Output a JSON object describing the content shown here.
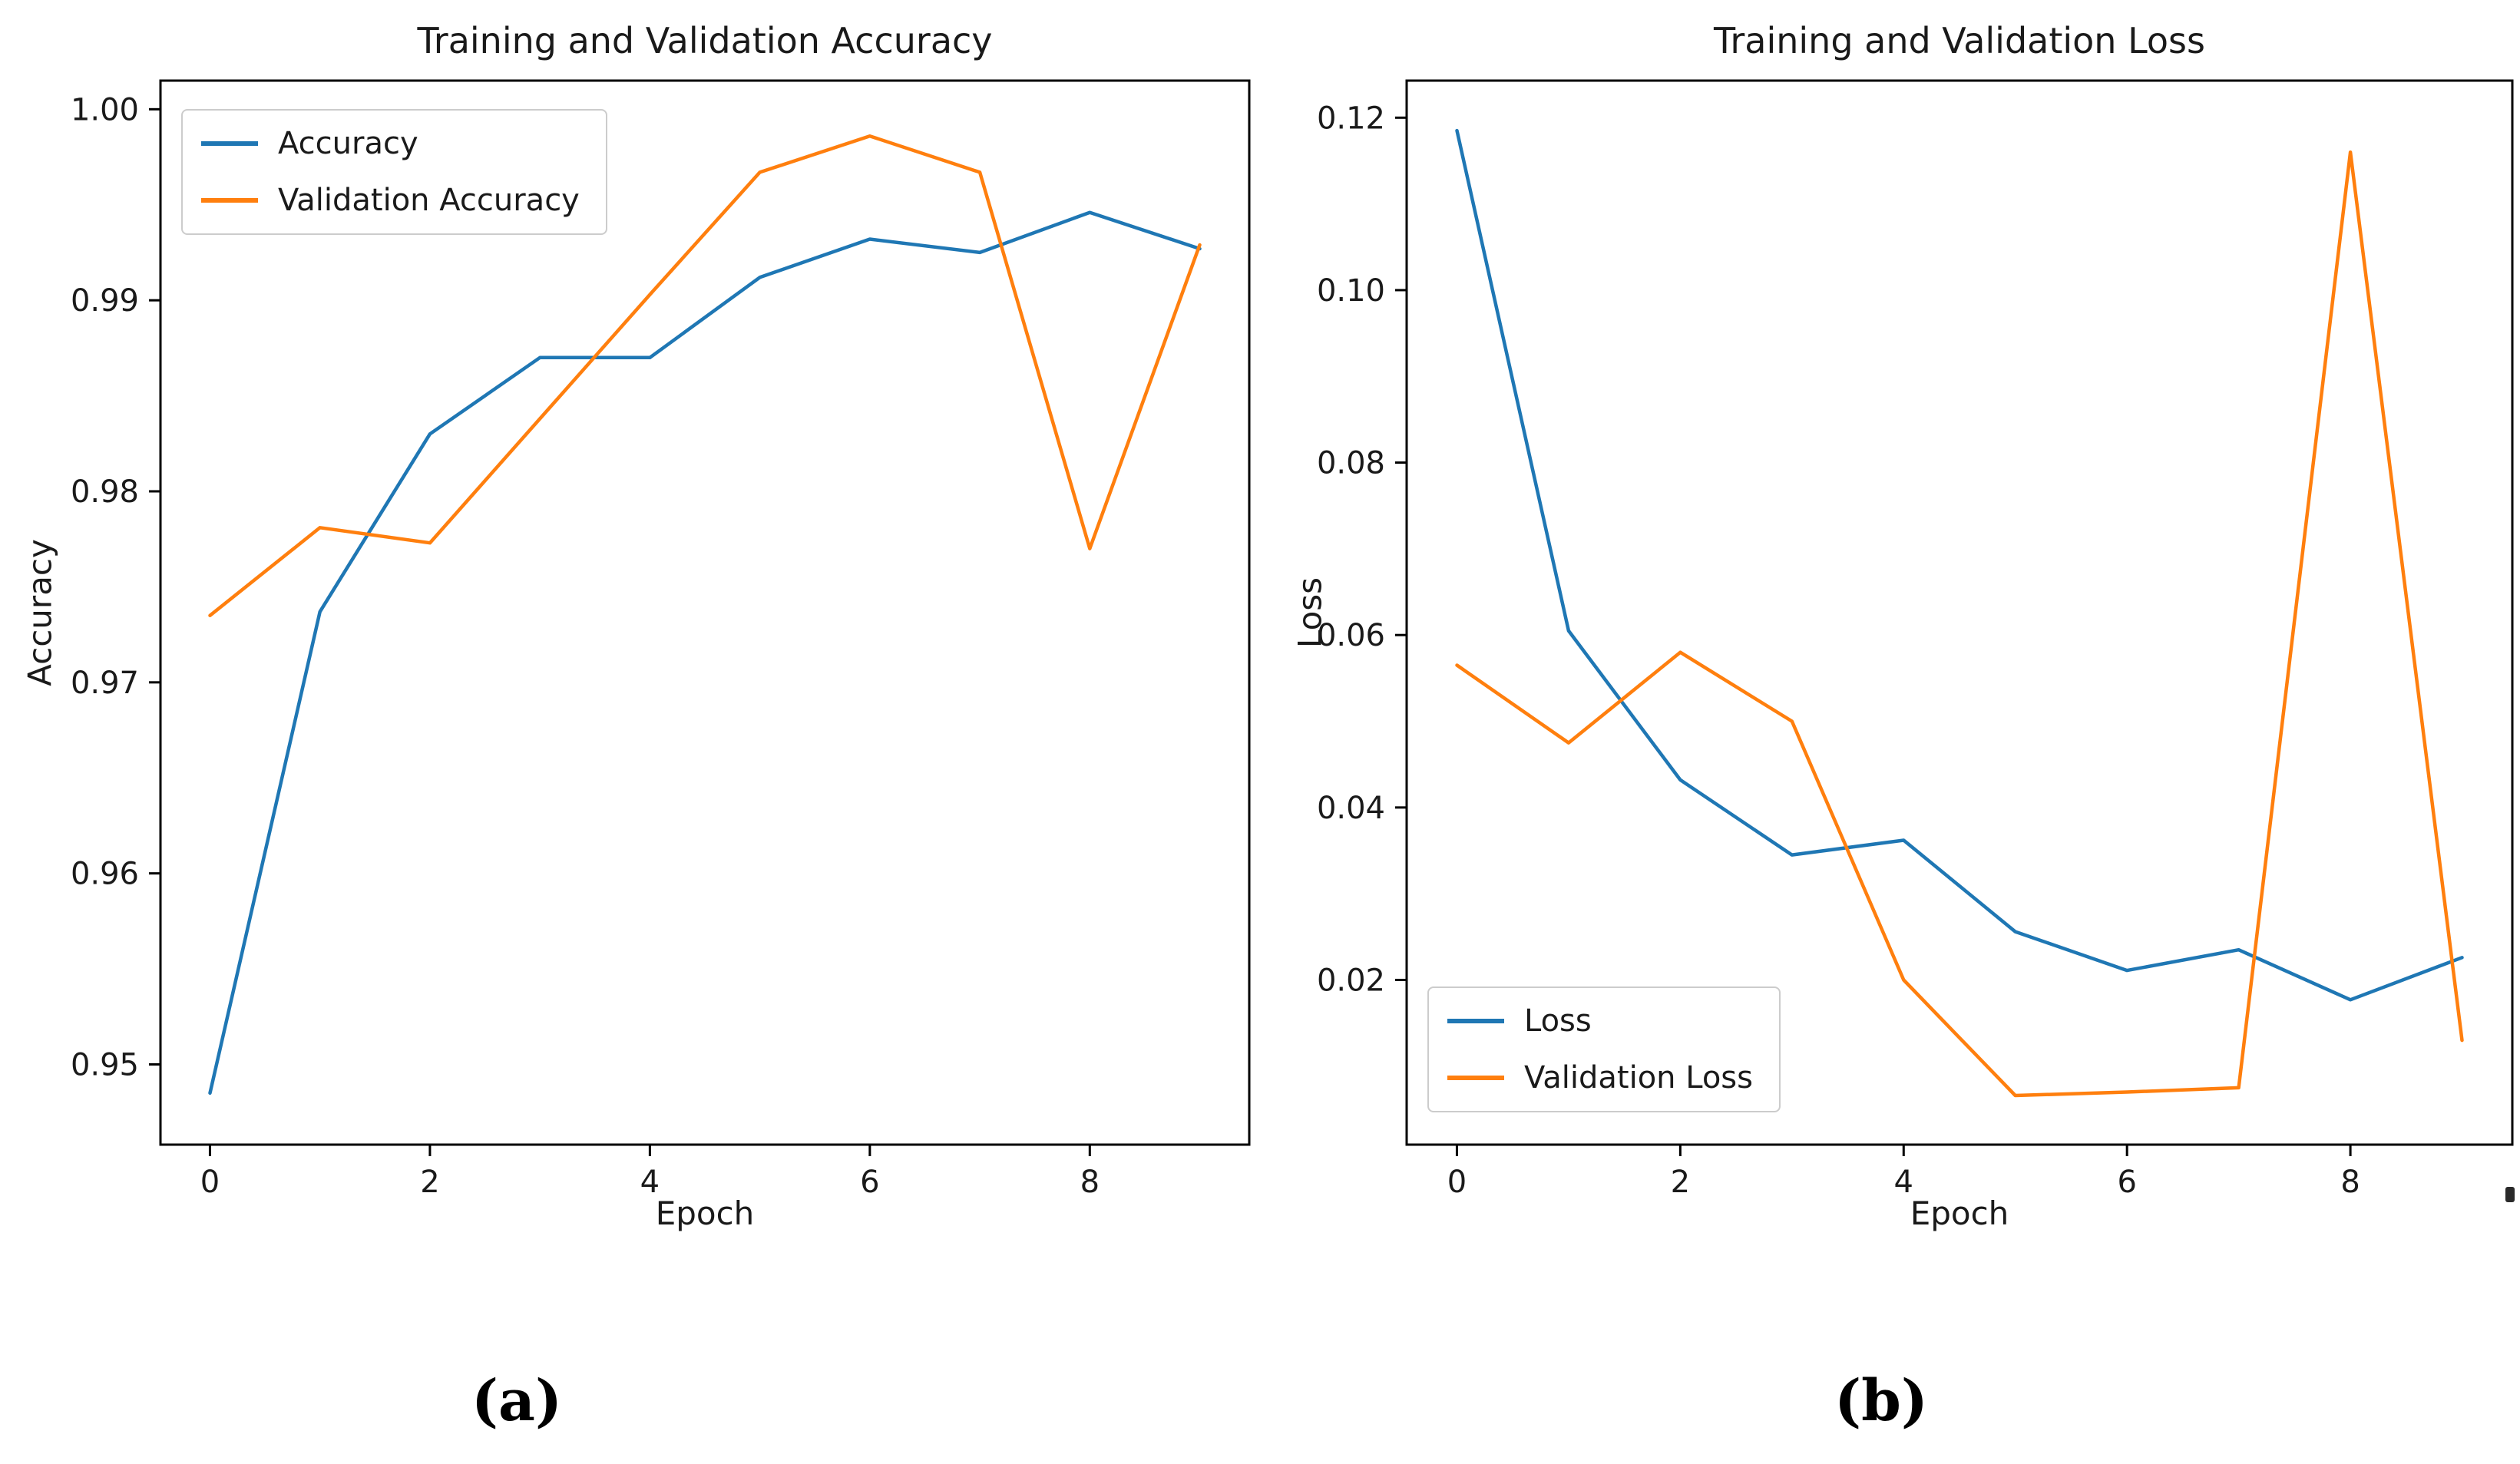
{
  "figure": {
    "background": "#ffffff",
    "captions": {
      "a": "(a)",
      "b": "(b)"
    }
  },
  "colors": {
    "train": "#1f77b4",
    "validation": "#ff7f0e",
    "axis": "#000000",
    "text": "#1a1a1a",
    "legend_border": "#cccccc"
  },
  "chart_data": [
    {
      "type": "line",
      "title": "Training and Validation Accuracy",
      "xlabel": "Epoch",
      "ylabel": "Accuracy",
      "x": [
        0,
        1,
        2,
        3,
        4,
        5,
        6,
        7,
        8,
        9
      ],
      "series": [
        {
          "name": "Accuracy",
          "color": "#1f77b4",
          "values": [
            0.9485,
            0.9737,
            0.983,
            0.987,
            0.987,
            0.9912,
            0.9932,
            0.9925,
            0.9946,
            0.9927
          ]
        },
        {
          "name": "Validation Accuracy",
          "color": "#ff7f0e",
          "values": [
            0.9735,
            0.9781,
            0.9773,
            0.9838,
            0.9903,
            0.9967,
            0.9986,
            0.9967,
            0.977,
            0.9929
          ]
        }
      ],
      "xlim": [
        -0.45,
        9.45
      ],
      "ylim": [
        0.9458,
        1.0015
      ],
      "xticks": [
        {
          "v": 0,
          "label": "0"
        },
        {
          "v": 2,
          "label": "2"
        },
        {
          "v": 4,
          "label": "4"
        },
        {
          "v": 6,
          "label": "6"
        },
        {
          "v": 8,
          "label": "8"
        }
      ],
      "yticks": [
        {
          "v": 1.0,
          "label": "1.00"
        },
        {
          "v": 0.99,
          "label": "0.99"
        },
        {
          "v": 0.98,
          "label": "0.98"
        },
        {
          "v": 0.97,
          "label": "0.97"
        },
        {
          "v": 0.96,
          "label": "0.96"
        },
        {
          "v": 0.95,
          "label": "0.95"
        }
      ],
      "legend_position": "top-left",
      "grid": false
    },
    {
      "type": "line",
      "title": "Training and Validation Loss",
      "xlabel": "Epoch",
      "ylabel": "Loss",
      "x": [
        0,
        1,
        2,
        3,
        4,
        5,
        6,
        7,
        8,
        9
      ],
      "series": [
        {
          "name": "Loss",
          "color": "#1f77b4",
          "values": [
            0.1185,
            0.0605,
            0.0432,
            0.0345,
            0.0362,
            0.0256,
            0.0211,
            0.0235,
            0.0177,
            0.0226
          ]
        },
        {
          "name": "Validation Loss",
          "color": "#ff7f0e",
          "values": [
            0.0565,
            0.0475,
            0.058,
            0.05,
            0.02,
            0.0066,
            0.007,
            0.0075,
            0.116,
            0.013
          ]
        }
      ],
      "xlim": [
        -0.45,
        9.45
      ],
      "ylim": [
        0.0009,
        0.1243
      ],
      "xticks": [
        {
          "v": 0,
          "label": "0"
        },
        {
          "v": 2,
          "label": "2"
        },
        {
          "v": 4,
          "label": "4"
        },
        {
          "v": 6,
          "label": "6"
        },
        {
          "v": 8,
          "label": "8"
        }
      ],
      "yticks": [
        {
          "v": 0.12,
          "label": "0.12"
        },
        {
          "v": 0.1,
          "label": "0.10"
        },
        {
          "v": 0.08,
          "label": "0.08"
        },
        {
          "v": 0.06,
          "label": "0.06"
        },
        {
          "v": 0.04,
          "label": "0.04"
        },
        {
          "v": 0.02,
          "label": "0.02"
        }
      ],
      "legend_position": "bottom-left",
      "grid": false
    }
  ]
}
